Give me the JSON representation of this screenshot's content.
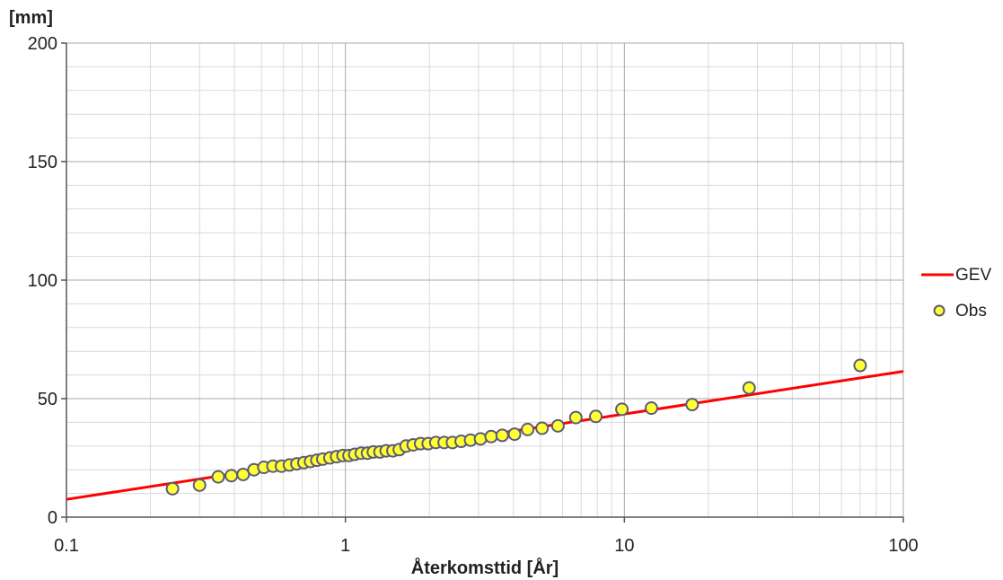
{
  "chart_data": {
    "type": "scatter",
    "xlabel": "Återkomsttid [År]",
    "ylabel": "[mm]",
    "x_scale": "log",
    "xlim": [
      0.1,
      100
    ],
    "ylim": [
      0,
      200
    ],
    "x_ticks": [
      "0.1",
      "1",
      "10",
      "100"
    ],
    "y_ticks": [
      "0",
      "50",
      "100",
      "150",
      "200"
    ],
    "grid": true,
    "legend_position": "right",
    "series": [
      {
        "name": "GEV",
        "kind": "line",
        "color": "#ff0000",
        "x": [
          0.1,
          100
        ],
        "y": [
          7.5,
          61.5
        ]
      },
      {
        "name": "Obs",
        "kind": "scatter",
        "color": "#ffff33",
        "stroke": "#5a5a7a",
        "x": [
          0.24,
          0.3,
          0.35,
          0.39,
          0.43,
          0.47,
          0.51,
          0.55,
          0.59,
          0.63,
          0.67,
          0.71,
          0.75,
          0.79,
          0.83,
          0.88,
          0.93,
          0.98,
          1.03,
          1.08,
          1.14,
          1.2,
          1.26,
          1.33,
          1.4,
          1.48,
          1.56,
          1.65,
          1.75,
          1.86,
          1.98,
          2.11,
          2.26,
          2.42,
          2.6,
          2.81,
          3.05,
          3.33,
          3.65,
          4.04,
          4.5,
          5.07,
          5.78,
          6.7,
          7.9,
          9.8,
          12.5,
          17.5,
          28,
          70
        ],
        "y": [
          12,
          13.5,
          17,
          17.5,
          18,
          20,
          21,
          21.5,
          21.5,
          22,
          22.5,
          23,
          23.5,
          24,
          24.5,
          25,
          25.5,
          26,
          26,
          26.5,
          27,
          27,
          27.5,
          27.5,
          28,
          28,
          28.5,
          30,
          30.5,
          31,
          31,
          31.5,
          31.5,
          31.5,
          32,
          32.5,
          33,
          34,
          34.5,
          35,
          37,
          37.5,
          38.5,
          42,
          42.5,
          45.5,
          46,
          47.5,
          54.5,
          64
        ]
      }
    ]
  }
}
